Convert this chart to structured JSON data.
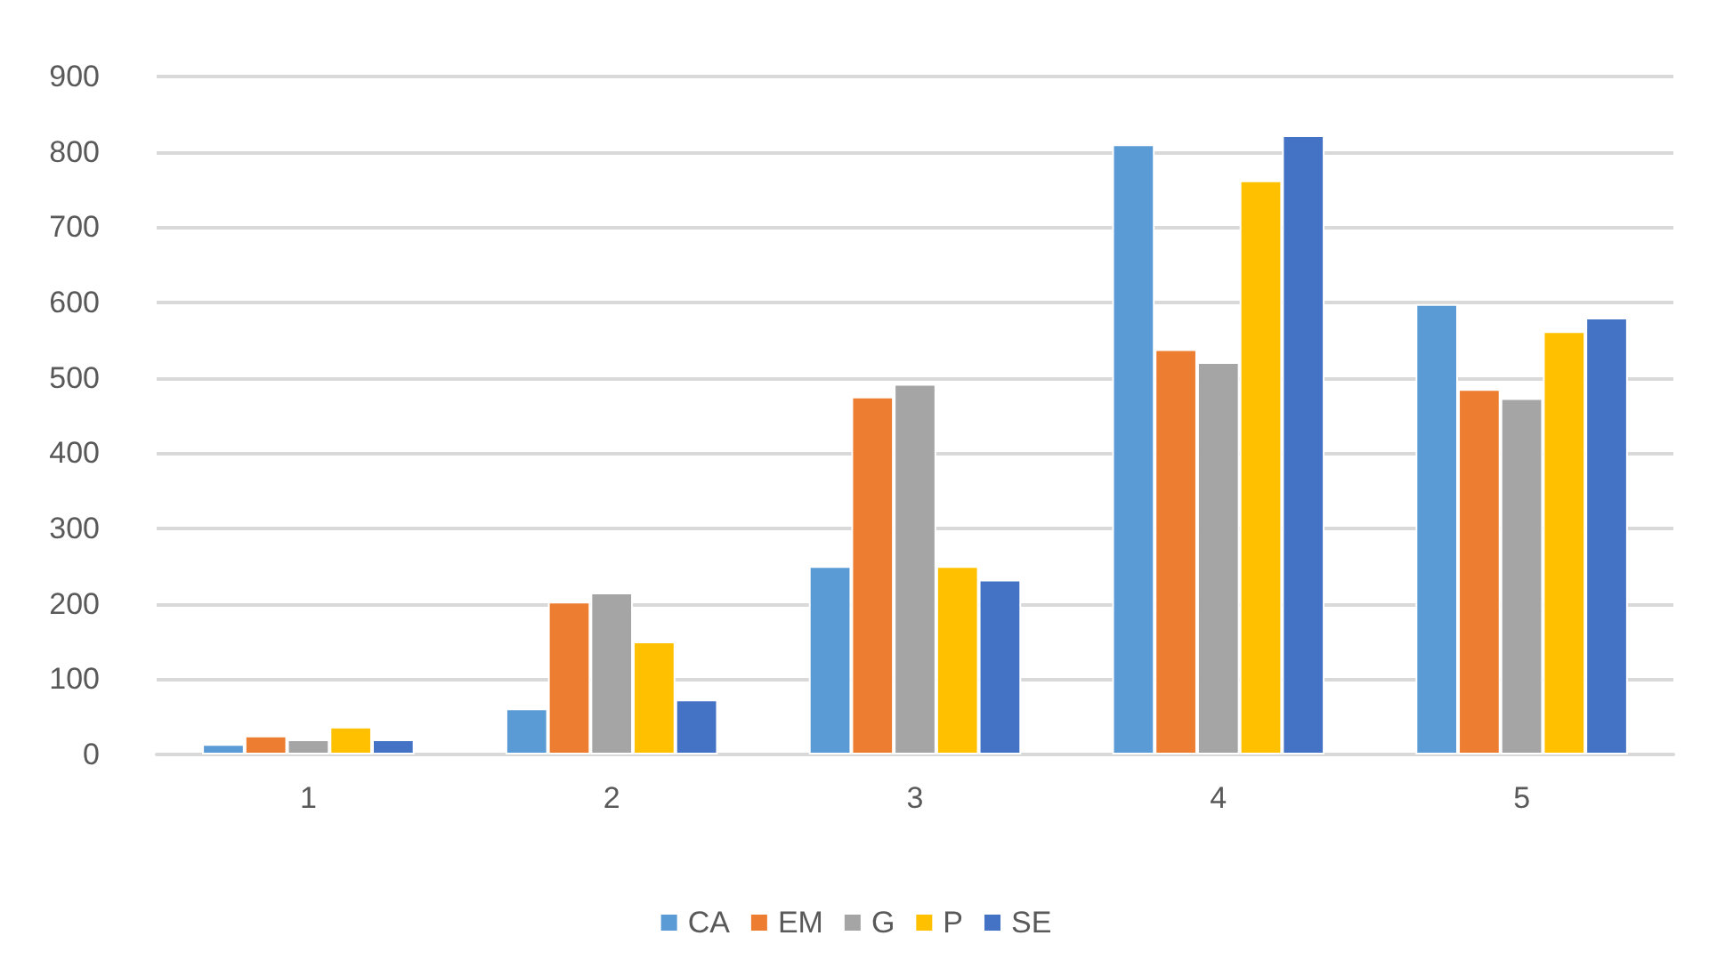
{
  "chart_data": {
    "type": "bar",
    "categories": [
      "1",
      "2",
      "3",
      "4",
      "5"
    ],
    "series": [
      {
        "name": "CA",
        "color": "#5b9bd5",
        "values": [
          14,
          61,
          250,
          810,
          598
        ]
      },
      {
        "name": "EM",
        "color": "#ed7d31",
        "values": [
          25,
          203,
          475,
          538,
          485
        ]
      },
      {
        "name": "G",
        "color": "#a5a5a5",
        "values": [
          20,
          215,
          492,
          521,
          473
        ]
      },
      {
        "name": "P",
        "color": "#ffc000",
        "values": [
          37,
          150,
          250,
          762,
          562
        ]
      },
      {
        "name": "SE",
        "color": "#4472c4",
        "values": [
          20,
          73,
          232,
          822,
          580
        ]
      }
    ],
    "ylim": [
      0,
      900
    ],
    "yticks": [
      0,
      100,
      200,
      300,
      400,
      500,
      600,
      700,
      800,
      900
    ],
    "grid": "y",
    "legend": "bottom"
  }
}
